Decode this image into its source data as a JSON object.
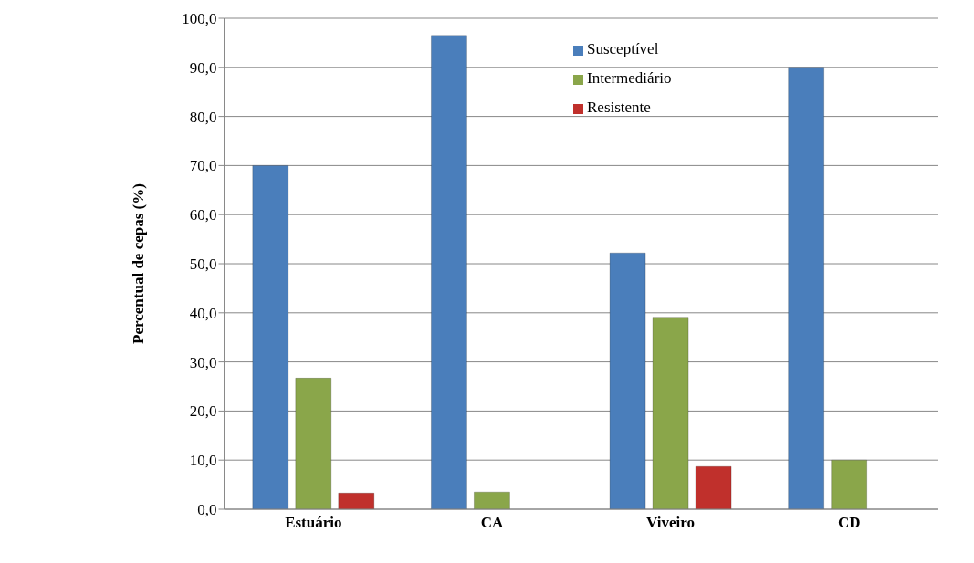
{
  "chart_data": {
    "type": "bar",
    "ylabel": "Percentual de cepas (%)",
    "categories": [
      "Estuário",
      "CA",
      "Viveiro",
      "CD"
    ],
    "series": [
      {
        "name": "Susceptível",
        "color": "#4a7ebb",
        "values": [
          70.0,
          96.5,
          52.2,
          90.0
        ]
      },
      {
        "name": "Intermediário",
        "color": "#8aa64a",
        "values": [
          26.7,
          3.5,
          39.1,
          10.0
        ]
      },
      {
        "name": "Resistente",
        "color": "#c0302c",
        "values": [
          3.3,
          null,
          8.7,
          null
        ]
      }
    ],
    "ylim": [
      0,
      100
    ],
    "yticks": [
      {
        "value": 0,
        "label": "0,0"
      },
      {
        "value": 10,
        "label": "10,0"
      },
      {
        "value": 20,
        "label": "20,0"
      },
      {
        "value": 30,
        "label": "30,0"
      },
      {
        "value": 40,
        "label": "40,0"
      },
      {
        "value": 50,
        "label": "50,0"
      },
      {
        "value": 60,
        "label": "60,0"
      },
      {
        "value": 70,
        "label": "70,0"
      },
      {
        "value": 80,
        "label": "80,0"
      },
      {
        "value": 90,
        "label": "90,0"
      },
      {
        "value": 100,
        "label": "100,0"
      }
    ],
    "grid": "y",
    "legend": "top"
  }
}
